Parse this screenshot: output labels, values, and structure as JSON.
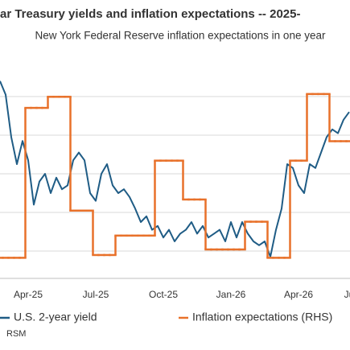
{
  "chart_data": {
    "type": "line",
    "title": "ar Treasury yields and inflation expectations -- 2025-",
    "subtitle": "New York Federal Reserve inflation expectations in one year",
    "source": "RSM",
    "categories": [
      null,
      null,
      null,
      null,
      null,
      "Apr-25",
      null,
      null,
      null,
      null,
      null,
      null,
      null,
      null,
      null,
      null,
      null,
      "Jul-25",
      null,
      null,
      null,
      null,
      null,
      null,
      null,
      null,
      null,
      null,
      null,
      "Oct-25",
      null,
      null,
      null,
      null,
      null,
      null,
      null,
      null,
      null,
      null,
      null,
      "Jan-26",
      null,
      null,
      null,
      null,
      null,
      null,
      null,
      null,
      null,
      null,
      null,
      "Apr-26",
      null,
      null,
      null,
      null,
      null,
      null,
      null,
      null,
      "Ju"
    ],
    "ylim": [
      3.25,
      4.4
    ],
    "y2lim": [
      2.9,
      3.7
    ],
    "grid": true,
    "series": [
      {
        "name": "U.S. 2-year yield",
        "color": "#1f5c85",
        "values": [
          4.28,
          4.21,
          3.99,
          3.85,
          3.97,
          3.87,
          3.64,
          3.76,
          3.8,
          3.7,
          3.78,
          3.72,
          3.74,
          3.87,
          3.91,
          3.87,
          3.7,
          3.66,
          3.8,
          3.85,
          3.74,
          3.7,
          3.72,
          3.68,
          3.62,
          3.55,
          3.58,
          3.51,
          3.53,
          3.47,
          3.51,
          3.45,
          3.49,
          3.51,
          3.55,
          3.49,
          3.53,
          3.47,
          3.49,
          3.51,
          3.45,
          3.55,
          3.47,
          3.55,
          3.49,
          3.45,
          3.43,
          3.45,
          3.37,
          3.51,
          3.62,
          3.85,
          3.83,
          3.74,
          3.7,
          3.85,
          3.83,
          3.91,
          3.99,
          4.03,
          4.01,
          4.08,
          4.12
        ]
      },
      {
        "name": "Inflation expectations (RHS)",
        "color": "#e8712a",
        "axis": "y2",
        "step": true,
        "values": [
          2.98,
          2.98,
          2.98,
          2.98,
          2.98,
          3.52,
          3.52,
          3.52,
          3.52,
          3.56,
          3.56,
          3.56,
          3.56,
          3.15,
          3.15,
          3.15,
          3.15,
          2.99,
          2.99,
          2.99,
          2.99,
          3.06,
          3.06,
          3.06,
          3.06,
          3.06,
          3.06,
          3.06,
          3.33,
          3.33,
          3.33,
          3.33,
          3.33,
          3.19,
          3.19,
          3.19,
          3.19,
          3.01,
          3.01,
          3.01,
          3.01,
          3.01,
          3.01,
          3.01,
          3.11,
          3.11,
          3.11,
          3.11,
          2.98,
          2.98,
          2.98,
          2.98,
          3.33,
          3.33,
          3.33,
          3.57,
          3.57,
          3.57,
          3.57,
          3.4,
          3.4,
          3.4,
          3.4
        ]
      }
    ]
  }
}
